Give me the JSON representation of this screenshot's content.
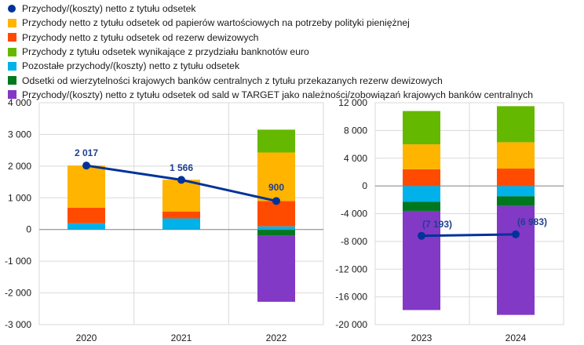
{
  "chart_data": [
    {
      "type": "bar",
      "stacked": true,
      "title": "",
      "xlabel": "",
      "ylabel": "",
      "categories": [
        "2020",
        "2021",
        "2022"
      ],
      "ylim": [
        -3000,
        4000
      ],
      "yticks": [
        -3000,
        -2000,
        -1000,
        0,
        1000,
        2000,
        3000,
        4000
      ],
      "ytick_labels": [
        "-3 000",
        "-2 000",
        "-1 000",
        "0",
        "1 000",
        "2 000",
        "3 000",
        "4 000"
      ],
      "series": [
        {
          "name": "Pozostałe przychody/(koszty) netto z tytułu odsetek",
          "color": "#00b1ea",
          "values": [
            200,
            350,
            100
          ]
        },
        {
          "name": "Przychody netto z tytułu odsetek od rezerw dewizowych",
          "color": "#ff4b00",
          "values": [
            490,
            220,
            800
          ]
        },
        {
          "name": "Przychody netto z tytułu odsetek od papierów wartościowych na potrzeby polityki pieniężnej",
          "color": "#ffb400",
          "values": [
            1330,
            1000,
            1530
          ]
        },
        {
          "name": "Przychody z tytułu odsetek wynikające z przydziału banknotów euro",
          "color": "#65b800",
          "values": [
            0,
            0,
            720
          ]
        },
        {
          "name": "Odsetki od wierzytelności krajowych banków centralnych z tytułu przekazanych rezerw dewizowych",
          "color": "#00781e",
          "values": [
            0,
            0,
            -200
          ]
        },
        {
          "name": "Przychody/(koszty) netto z tytułu odsetek od sald w TARGET jako należności/zobowiązań krajowych banków centralnych",
          "color": "#8139c6",
          "values": [
            0,
            0,
            -2080
          ]
        }
      ],
      "line": {
        "name": "Przychody/(koszty) netto z tytułu odsetek",
        "color": "#003299",
        "values": [
          2017,
          1566,
          900
        ]
      },
      "data_labels": [
        "2 017",
        "1 566",
        "900"
      ]
    },
    {
      "type": "bar",
      "stacked": true,
      "title": "",
      "xlabel": "",
      "ylabel": "",
      "categories": [
        "2023",
        "2024"
      ],
      "ylim": [
        -20000,
        12000
      ],
      "yticks": [
        -20000,
        -16000,
        -12000,
        -8000,
        -4000,
        0,
        4000,
        8000,
        12000
      ],
      "ytick_labels": [
        "-20 000",
        "-16 000",
        "-12 000",
        "-8 000",
        "-4 000",
        "0",
        "4 000",
        "8 000",
        "12 000"
      ],
      "series": [
        {
          "name": "Pozostałe przychody/(koszty) netto z tytułu odsetek",
          "color": "#00b1ea",
          "values": [
            -2300,
            -1500
          ]
        },
        {
          "name": "Przychody netto z tytułu odsetek od rezerw dewizowych",
          "color": "#ff4b00",
          "values": [
            2400,
            2500
          ]
        },
        {
          "name": "Przychody netto z tytułu odsetek od papierów wartościowych na potrzeby polityki pieniężnej",
          "color": "#ffb400",
          "values": [
            3600,
            3800
          ]
        },
        {
          "name": "Przychody z tytułu odsetek wynikające z przydziału banknotów euro",
          "color": "#65b800",
          "values": [
            4800,
            5200
          ]
        },
        {
          "name": "Odsetki od wierzytelności krajowych banków centralnych z tytułu przekazanych rezerw dewizowych",
          "color": "#00781e",
          "values": [
            -1300,
            -1400
          ]
        },
        {
          "name": "Przychody/(koszty) netto z tytułu odsetek od sald w TARGET jako należności/zobowiązań krajowych banków centralnych",
          "color": "#8139c6",
          "values": [
            -14300,
            -15700
          ]
        }
      ],
      "line": {
        "name": "Przychody/(koszty) netto z tytułu odsetek",
        "color": "#003299",
        "values": [
          -7193,
          -6983
        ]
      },
      "data_labels": [
        "(7 193)",
        "(6 983)"
      ]
    }
  ],
  "legend": [
    {
      "label": "Przychody/(koszty) netto z tytułu odsetek",
      "color": "#003299",
      "marker": "dot"
    },
    {
      "label": "Przychody netto z tytułu odsetek od papierów wartościowych na potrzeby polityki pieniężnej",
      "color": "#ffb400",
      "marker": "square"
    },
    {
      "label": "Przychody netto z tytułu odsetek od rezerw dewizowych",
      "color": "#ff4b00",
      "marker": "square"
    },
    {
      "label": "Przychody z tytułu odsetek wynikające z przydziału banknotów euro",
      "color": "#65b800",
      "marker": "square"
    },
    {
      "label": "Pozostałe przychody/(koszty) netto z tytułu odsetek",
      "color": "#00b1ea",
      "marker": "square"
    },
    {
      "label": "Odsetki od wierzytelności krajowych banków centralnych z tytułu przekazanych rezerw dewizowych",
      "color": "#00781e",
      "marker": "square"
    },
    {
      "label": "Przychody/(koszty) netto z tytułu odsetek od sald w TARGET jako należności/zobowiązań krajowych banków centralnych",
      "color": "#8139c6",
      "marker": "square"
    }
  ]
}
